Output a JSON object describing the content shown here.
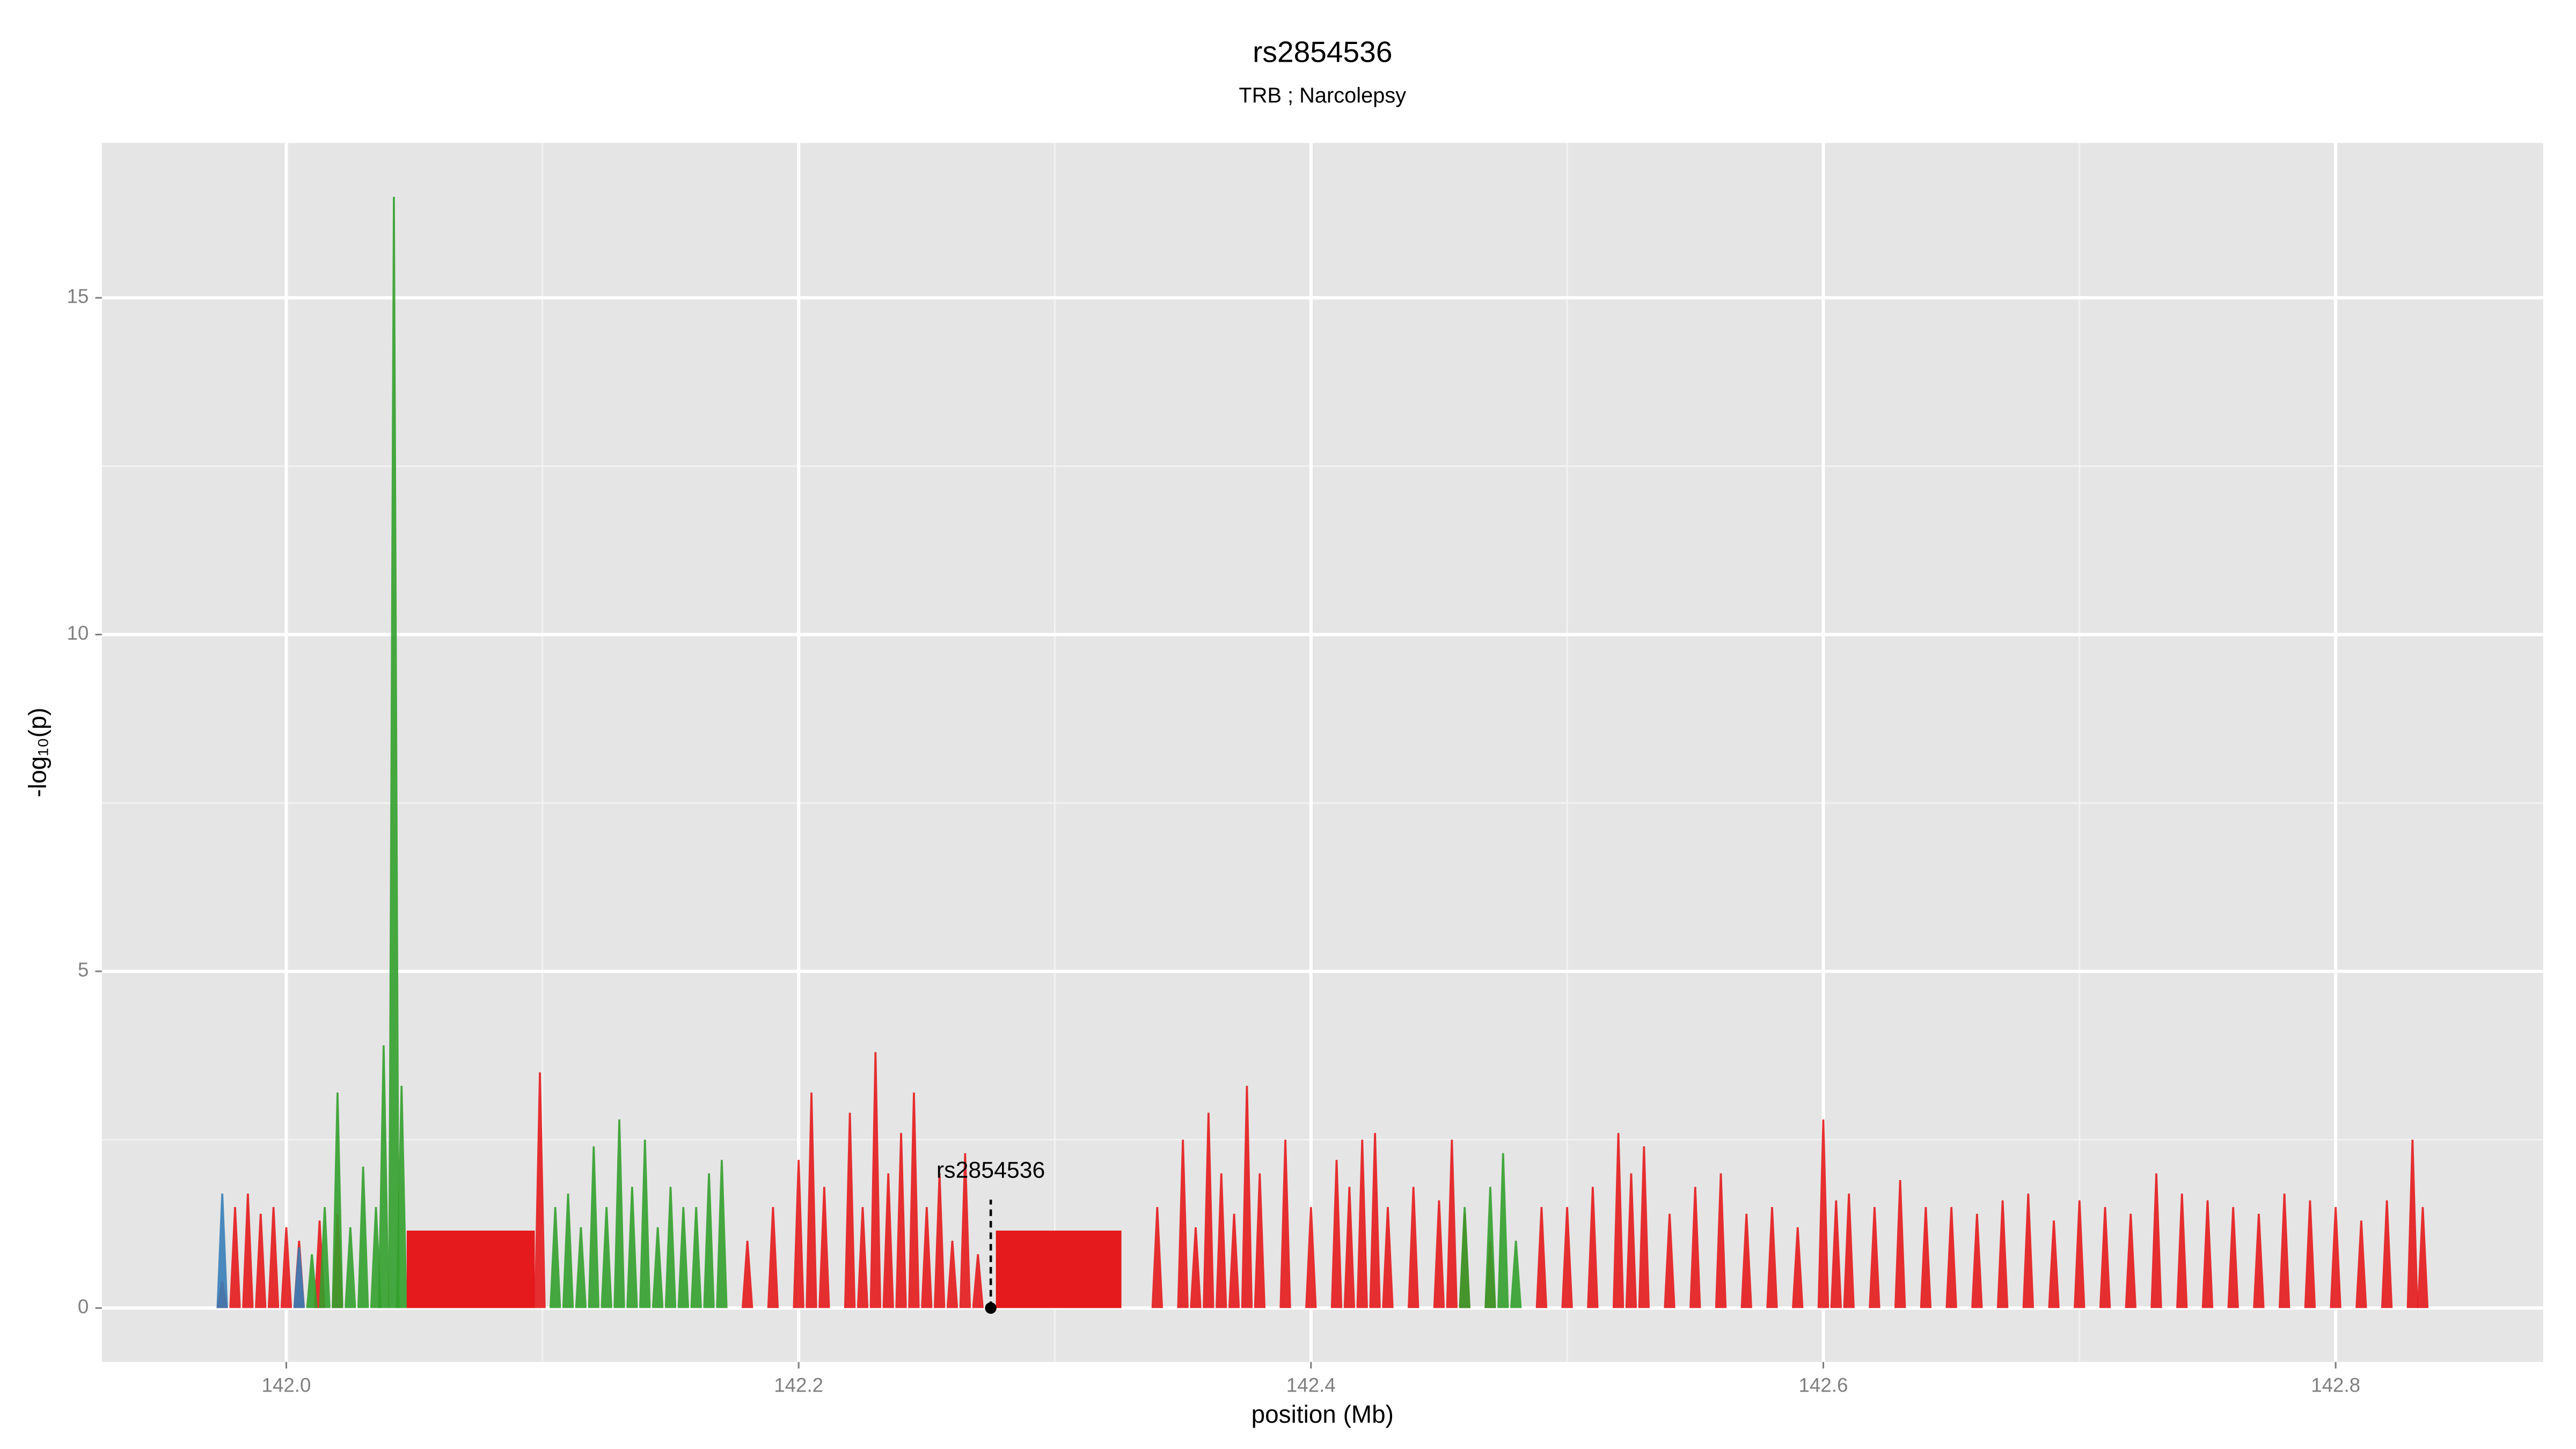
{
  "chart_data": {
    "type": "spike",
    "title": "rs2854536",
    "subtitle": "TRB ; Narcolepsy",
    "x_label": "position (Mb)",
    "y_label": "-log₁₀(p)",
    "xlim": [
      141.928,
      142.881
    ],
    "ylim": [
      -0.8,
      17.3
    ],
    "xticks": [
      {
        "value": 142,
        "label": "142.0"
      },
      142.2,
      142.4,
      142.6,
      142.8
    ],
    "yticks": [
      0,
      5,
      10,
      15
    ],
    "x_minor_ticks": [
      142.1,
      142.3,
      142.5,
      142.7
    ],
    "y_minor_ticks": [
      2.5,
      7.5,
      12.5
    ],
    "grid": true,
    "background": "#e5e5e5",
    "series": [
      {
        "name": "red",
        "color": "#e41a1c",
        "x": [
          141.975,
          141.98,
          141.985,
          141.99,
          141.995,
          142.0,
          142.005,
          142.013,
          142.02,
          142.099,
          142.18,
          142.19,
          142.2,
          142.205,
          142.21,
          142.22,
          142.225,
          142.23,
          142.235,
          142.24,
          142.245,
          142.25,
          142.255,
          142.26,
          142.265,
          142.27,
          142.34,
          142.35,
          142.355,
          142.36,
          142.365,
          142.37,
          142.375,
          142.38,
          142.39,
          142.4,
          142.41,
          142.415,
          142.42,
          142.425,
          142.43,
          142.44,
          142.45,
          142.455,
          142.46,
          142.47,
          142.49,
          142.5,
          142.51,
          142.52,
          142.525,
          142.53,
          142.54,
          142.55,
          142.56,
          142.57,
          142.58,
          142.59,
          142.6,
          142.605,
          142.61,
          142.62,
          142.63,
          142.64,
          142.65,
          142.66,
          142.67,
          142.68,
          142.69,
          142.7,
          142.71,
          142.72,
          142.73,
          142.74,
          142.75,
          142.76,
          142.77,
          142.78,
          142.79,
          142.8,
          142.81,
          142.82,
          142.83,
          142.834
        ],
        "values": [
          0.4,
          1.5,
          1.7,
          1.4,
          1.5,
          1.2,
          1.0,
          1.3,
          1.4,
          3.5,
          1.0,
          1.5,
          2.2,
          3.2,
          1.8,
          2.9,
          1.5,
          3.8,
          2.0,
          2.6,
          3.2,
          1.5,
          2.0,
          1.0,
          2.3,
          0.8,
          1.5,
          2.5,
          1.2,
          2.9,
          2.0,
          1.4,
          3.3,
          2.0,
          2.5,
          1.5,
          2.2,
          1.8,
          2.5,
          2.6,
          1.5,
          1.8,
          1.6,
          2.5,
          1.4,
          1.0,
          1.5,
          1.5,
          1.8,
          2.6,
          2.0,
          2.4,
          1.4,
          1.8,
          2.0,
          1.4,
          1.5,
          1.2,
          2.8,
          1.6,
          1.7,
          1.5,
          1.9,
          1.5,
          1.5,
          1.4,
          1.6,
          1.7,
          1.3,
          1.6,
          1.5,
          1.4,
          2.0,
          1.7,
          1.6,
          1.5,
          1.4,
          1.7,
          1.6,
          1.5,
          1.3,
          1.6,
          2.5,
          1.5
        ]
      },
      {
        "name": "green",
        "color": "#33a02c",
        "x": [
          142.01,
          142.015,
          142.02,
          142.025,
          142.03,
          142.035,
          142.038,
          142.042,
          142.045,
          142.105,
          142.11,
          142.115,
          142.12,
          142.125,
          142.13,
          142.135,
          142.14,
          142.145,
          142.15,
          142.155,
          142.16,
          142.165,
          142.17,
          142.46,
          142.47,
          142.475,
          142.48
        ],
        "values": [
          0.8,
          1.5,
          3.2,
          1.2,
          2.1,
          1.5,
          3.9,
          16.5,
          3.3,
          1.5,
          1.7,
          1.2,
          2.4,
          1.5,
          2.8,
          1.8,
          2.5,
          1.2,
          1.8,
          1.5,
          1.5,
          2.0,
          2.2,
          1.5,
          1.8,
          2.3,
          1.0
        ]
      },
      {
        "name": "blue",
        "color": "#377eb8",
        "x": [
          141.975,
          142.005
        ],
        "values": [
          1.7,
          0.9
        ]
      }
    ],
    "blocks": [
      {
        "start": 142.047,
        "end": 142.097,
        "value": 1.15,
        "color": "#e41a1c"
      },
      {
        "start": 142.277,
        "end": 142.326,
        "value": 1.15,
        "color": "#e41a1c"
      }
    ],
    "annotation": {
      "label": "rs2854536",
      "x": 142.275,
      "value": 0
    }
  }
}
